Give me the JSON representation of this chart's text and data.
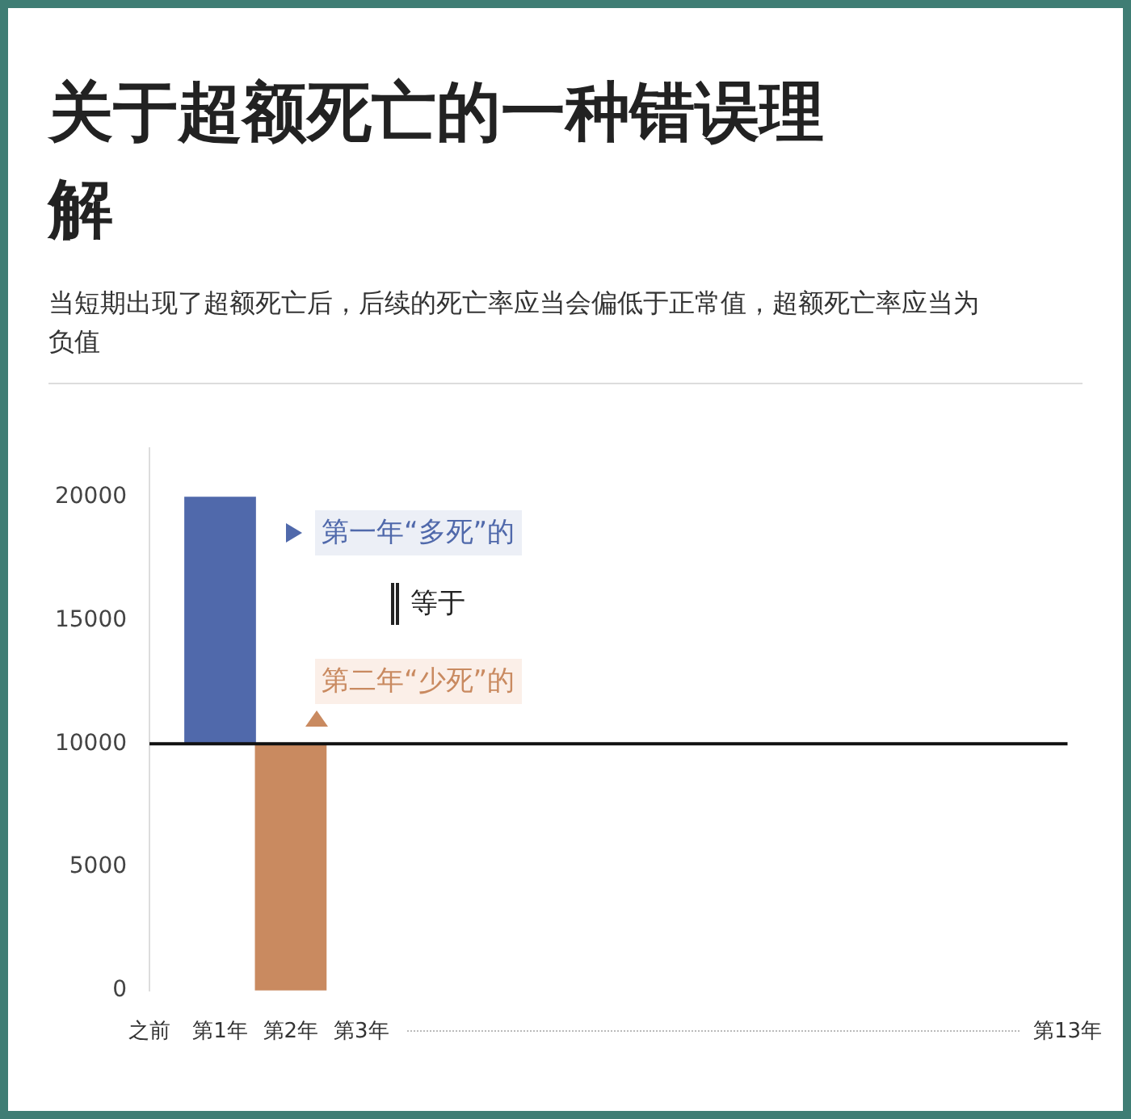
{
  "chart_data": {
    "type": "bar",
    "title": "关于超额死亡的一种错误理解",
    "subtitle": "当短期出现了超额死亡后，后续的死亡率应当会偏低于正常值，超额死亡率应当为负值",
    "categories": [
      "之前",
      "第1年",
      "第2年",
      "第3年",
      null,
      null,
      null,
      null,
      null,
      null,
      null,
      null,
      null,
      "第13年"
    ],
    "series": [
      {
        "values": [
          null,
          10000,
          10000,
          null,
          null,
          null,
          null,
          null,
          null,
          null,
          null,
          null,
          null,
          null
        ],
        "base": [
          null,
          10000,
          0,
          null,
          null,
          null,
          null,
          null,
          null,
          null,
          null,
          null,
          null,
          null
        ],
        "colors": [
          null,
          "#5069ab",
          "#c98a60",
          null,
          null,
          null,
          null,
          null,
          null,
          null,
          null,
          null,
          null,
          null
        ]
      },
      {
        "type": "line",
        "color": "#111111",
        "values": [
          10000,
          10000,
          10000,
          10000,
          10000,
          10000,
          10000,
          10000,
          10000,
          10000,
          10000,
          10000,
          10000,
          10000
        ]
      }
    ],
    "ylim": [
      0,
      22000
    ],
    "yticks": [
      0,
      5000,
      10000,
      15000,
      20000
    ],
    "grid": false,
    "legend": false,
    "marker": "none",
    "annotations": [
      "第一年“多死”的",
      "等于",
      "第二年“少死”的"
    ]
  }
}
